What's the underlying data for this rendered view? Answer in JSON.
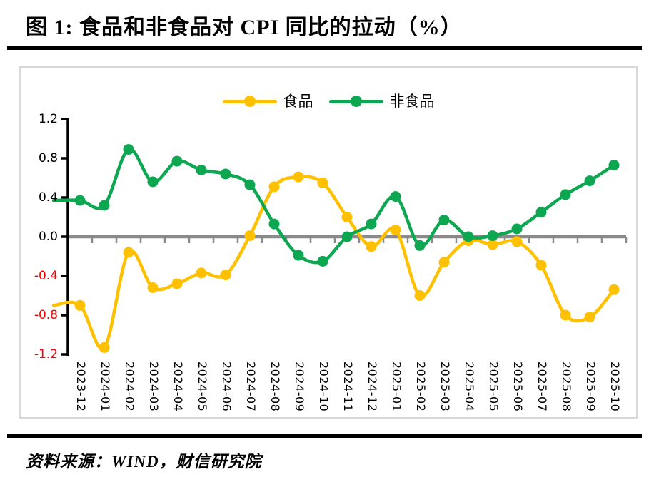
{
  "header": {
    "title": "图 1:  食品和非食品对 CPI 同比的拉动（%）"
  },
  "footer": {
    "source": "资料来源：WIND，财信研究院"
  },
  "chart_data": {
    "type": "line",
    "title": "食品和非食品对 CPI 同比的拉动（%）",
    "categories": [
      "2023-12",
      "2024-01",
      "2024-02",
      "2024-03",
      "2024-04",
      "2024-05",
      "2024-06",
      "2024-07",
      "2024-08",
      "2024-09",
      "2024-10",
      "2024-11",
      "2024-12",
      "2025-01",
      "2025-02",
      "2025-03",
      "2025-04",
      "2025-05",
      "2025-06",
      "2025-07",
      "2025-08",
      "2025-09",
      "2025-10"
    ],
    "series": [
      {
        "name": "食品",
        "color": "#FFC000",
        "values": [
          -0.7,
          -1.13,
          -0.16,
          -0.52,
          -0.48,
          -0.37,
          -0.39,
          0.01,
          0.51,
          0.61,
          0.55,
          0.2,
          -0.1,
          0.07,
          -0.6,
          -0.26,
          -0.04,
          -0.08,
          -0.05,
          -0.29,
          -0.8,
          -0.82,
          -0.54
        ]
      },
      {
        "name": "非食品",
        "color": "#0CA750",
        "values": [
          0.37,
          0.32,
          0.89,
          0.56,
          0.77,
          0.68,
          0.64,
          0.53,
          0.13,
          -0.19,
          -0.25,
          0.0,
          0.13,
          0.41,
          -0.09,
          0.17,
          0.0,
          0.01,
          0.08,
          0.25,
          0.43,
          0.57,
          0.73
        ]
      }
    ],
    "ylim": [
      -1.2,
      1.2
    ],
    "ytick_step": 0.4,
    "yticks": [
      1.2,
      0.8,
      0.4,
      0.0,
      -0.4,
      -0.8,
      -1.2
    ],
    "x_axis_position": 0,
    "x_labels_rotated": true,
    "grid": false,
    "smooth": true,
    "marker": "circle",
    "legend_position": "top-center",
    "colors": {
      "zero_line": "#8A8A8A",
      "box_border": "#D9D9D9",
      "negative_tick_label": "#FF0000",
      "axis": "#000000"
    }
  }
}
